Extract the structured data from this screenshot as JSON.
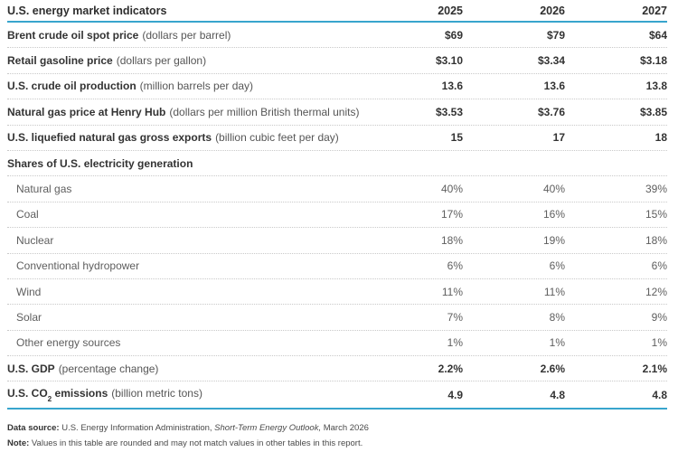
{
  "chart_data": {
    "type": "table",
    "title": "U.S. energy market indicators",
    "columns": [
      "2025",
      "2026",
      "2027"
    ],
    "rows": [
      {
        "label": "Brent crude oil spot price",
        "unit": "(dollars per barrel)",
        "style": "main",
        "values": [
          "$69",
          "$79",
          "$64"
        ]
      },
      {
        "label": "Retail gasoline price",
        "unit": "(dollars per gallon)",
        "style": "main",
        "values": [
          "$3.10",
          "$3.34",
          "$3.18"
        ]
      },
      {
        "label": "U.S. crude oil production",
        "unit": "(million barrels per day)",
        "style": "main",
        "values": [
          "13.6",
          "13.6",
          "13.8"
        ]
      },
      {
        "label": "Natural gas price at Henry Hub",
        "unit": "(dollars per million British thermal units)",
        "style": "main",
        "values": [
          "$3.53",
          "$3.76",
          "$3.85"
        ]
      },
      {
        "label": "U.S. liquefied natural gas gross exports",
        "unit": "(billion cubic feet per day)",
        "style": "main",
        "values": [
          "15",
          "17",
          "18"
        ]
      },
      {
        "label": "Shares of U.S. electricity generation",
        "unit": "",
        "style": "section",
        "values": [
          "",
          "",
          ""
        ]
      },
      {
        "label": "Natural gas",
        "unit": "",
        "style": "sub",
        "values": [
          "40%",
          "40%",
          "39%"
        ]
      },
      {
        "label": "Coal",
        "unit": "",
        "style": "sub",
        "values": [
          "17%",
          "16%",
          "15%"
        ]
      },
      {
        "label": "Nuclear",
        "unit": "",
        "style": "sub",
        "values": [
          "18%",
          "19%",
          "18%"
        ]
      },
      {
        "label": "Conventional hydropower",
        "unit": "",
        "style": "sub",
        "values": [
          "6%",
          "6%",
          "6%"
        ]
      },
      {
        "label": "Wind",
        "unit": "",
        "style": "sub",
        "values": [
          "11%",
          "11%",
          "12%"
        ]
      },
      {
        "label": "Solar",
        "unit": "",
        "style": "sub",
        "values": [
          "7%",
          "8%",
          "9%"
        ]
      },
      {
        "label": "Other energy sources",
        "unit": "",
        "style": "sub",
        "values": [
          "1%",
          "1%",
          "1%"
        ]
      },
      {
        "label": "U.S. GDP",
        "unit": "(percentage change)",
        "style": "main",
        "values": [
          "2.2%",
          "2.6%",
          "2.1%"
        ]
      },
      {
        "label_pre": "U.S. CO",
        "label_sub": "2",
        "label_post": " emissions",
        "unit": "(billion metric tons)",
        "style": "main",
        "values": [
          "4.9",
          "4.8",
          "4.8"
        ]
      }
    ],
    "layout": {
      "value_columns_align": "right",
      "row_separator": "dotted",
      "rule_color": "#38a5cd"
    }
  },
  "footer": {
    "source_bold": "Data source:",
    "source_normal": " U.S. Energy Information Administration, ",
    "source_italic": "Short-Term Energy Outlook,",
    "source_end": " March 2026",
    "note_bold": "Note:",
    "note_normal": " Values in this table are rounded and may not match values in other tables in this report."
  },
  "colors": {
    "accent_rule": "#38a5cd",
    "bold_text": "#333333",
    "secondary_text": "#5e5e5e",
    "dotted_separator": "#c9c9c9",
    "background": "#ffffff"
  }
}
